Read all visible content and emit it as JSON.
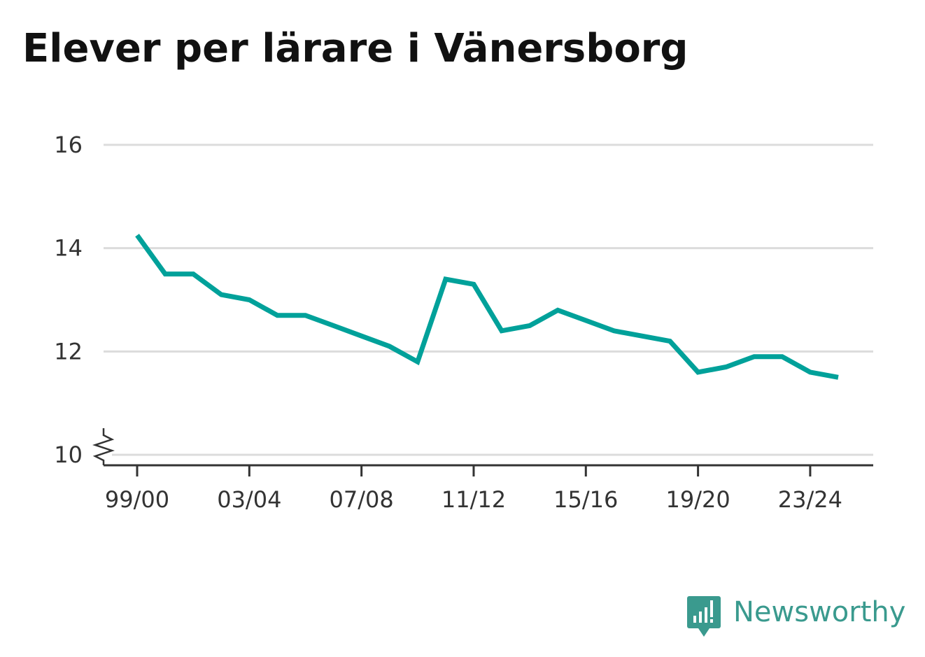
{
  "title": "Elever per lärare i Vänersborg",
  "brand": {
    "name": "Newsworthy",
    "icon": "newsworthy-logo-icon",
    "color": "#3a9a8e"
  },
  "chart_data": {
    "type": "line",
    "title": "Elever per lärare i Vänersborg",
    "xlabel": "",
    "ylabel": "",
    "x": [
      "99/00",
      "00/01",
      "01/02",
      "02/03",
      "03/04",
      "04/05",
      "05/06",
      "06/07",
      "07/08",
      "08/09",
      "09/10",
      "10/11",
      "11/12",
      "12/13",
      "13/14",
      "14/15",
      "15/16",
      "16/17",
      "17/18",
      "18/19",
      "19/20",
      "20/21",
      "21/22",
      "22/23",
      "23/24",
      "24/25"
    ],
    "series": [
      {
        "values": [
          14.25,
          13.5,
          13.5,
          13.1,
          13.0,
          12.7,
          12.7,
          12.5,
          12.3,
          12.1,
          11.8,
          13.4,
          13.3,
          12.4,
          12.5,
          12.8,
          12.6,
          12.4,
          12.3,
          12.2,
          11.6,
          11.7,
          11.9,
          11.9,
          11.6,
          11.5
        ],
        "color": "#00a19a"
      }
    ],
    "xticks": [
      "99/00",
      "03/04",
      "07/08",
      "11/12",
      "15/16",
      "19/20",
      "23/24"
    ],
    "yticks": [
      10,
      12,
      14,
      16
    ],
    "ylim": [
      10,
      16
    ],
    "grid": true,
    "axis_break": true
  }
}
